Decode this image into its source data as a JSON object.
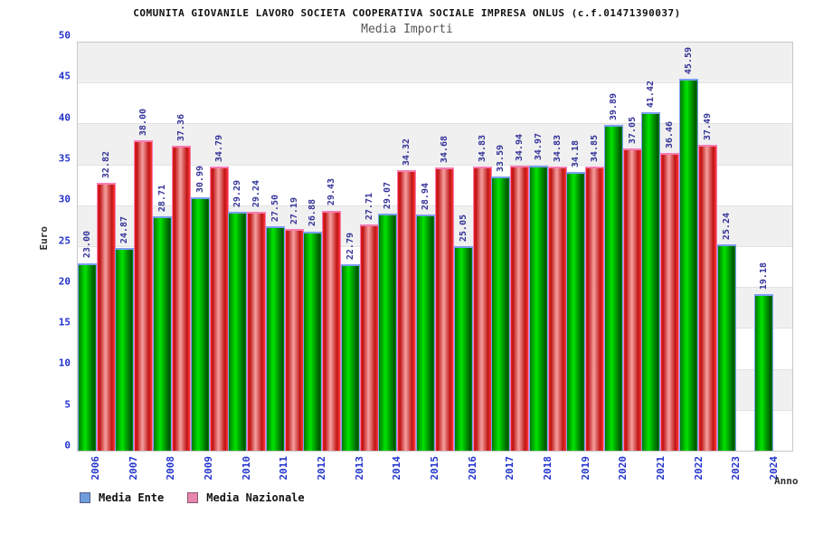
{
  "header": {
    "title": "COMUNITA GIOVANILE LAVORO SOCIETA COOPERATIVA SOCIALE IMPRESA ONLUS (c.f.01471390037)",
    "subtitle": "Media Importi"
  },
  "axes": {
    "y_label": "Euro",
    "x_label": "Anno",
    "y_ticks": [
      0,
      5,
      10,
      15,
      20,
      25,
      30,
      35,
      40,
      45,
      50
    ]
  },
  "legend": {
    "ente_label": "Media Ente",
    "nazionale_label": "Media Nazionale",
    "ente_color": "#6e9ddc",
    "nazionale_color": "#e886ae"
  },
  "colors": {
    "green_bar_border": "#7d9ef5",
    "red_bar_border": "#f57db5",
    "value_label": "#333399",
    "axis_text": "#2233cc",
    "band_gray": "#f0f0f0"
  },
  "chart_data": {
    "type": "bar",
    "title": "COMUNITA GIOVANILE LAVORO SOCIETA COOPERATIVA SOCIALE IMPRESA ONLUS (c.f.01471390037)",
    "subtitle": "Media Importi",
    "xlabel": "Anno",
    "ylabel": "Euro",
    "ylim": [
      0,
      50
    ],
    "grid": "horizontal bands every 5",
    "legend_position": "bottom-left",
    "categories": [
      "2006",
      "2007",
      "2008",
      "2009",
      "2010",
      "2011",
      "2012",
      "2013",
      "2014",
      "2015",
      "2016",
      "2017",
      "2018",
      "2019",
      "2020",
      "2021",
      "2022",
      "2023",
      "2024"
    ],
    "series": [
      {
        "name": "Media Ente",
        "style": "green-cylinder",
        "values": [
          23.0,
          24.87,
          28.71,
          30.99,
          29.29,
          27.5,
          26.88,
          22.79,
          29.07,
          28.94,
          25.05,
          33.59,
          34.97,
          34.18,
          39.89,
          41.42,
          45.59,
          25.24,
          19.18
        ]
      },
      {
        "name": "Media Nazionale",
        "style": "red-cylinder",
        "values": [
          32.82,
          38.0,
          37.36,
          34.79,
          29.24,
          27.19,
          29.43,
          27.71,
          34.32,
          34.68,
          34.83,
          34.94,
          34.83,
          34.85,
          37.05,
          36.46,
          37.49,
          null,
          null
        ]
      }
    ]
  }
}
